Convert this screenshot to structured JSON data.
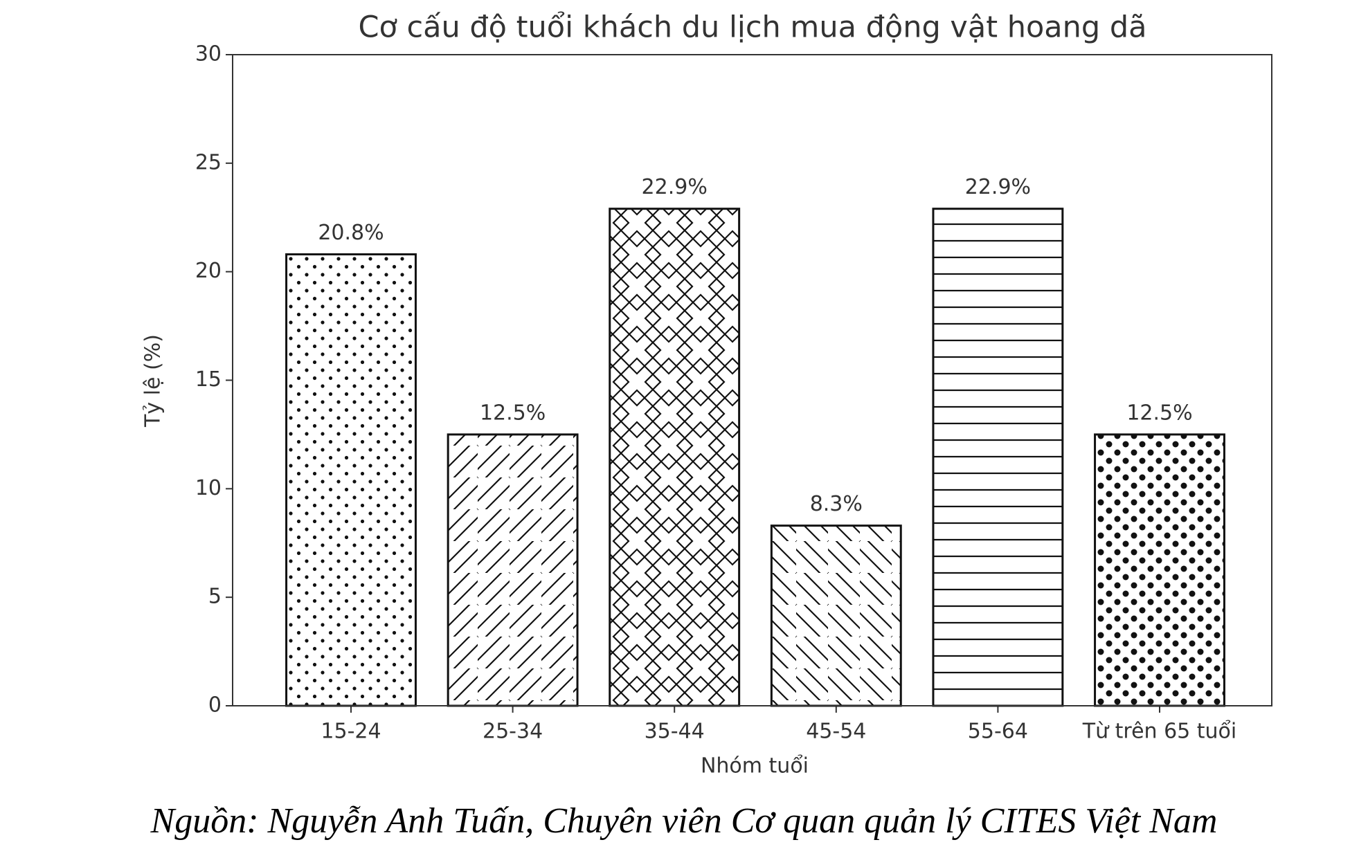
{
  "chart_data": {
    "type": "bar",
    "title": "Cơ cấu độ tuổi khách du lịch mua động vật hoang dã",
    "x_label": "Nhóm tuổi",
    "y_label": "Tỷ lệ (%)",
    "categories": [
      "15-24",
      "25-34",
      "35-44",
      "45-54",
      "55-64",
      "Từ trên 65 tuổi"
    ],
    "values": [
      20.8,
      12.5,
      22.9,
      8.3,
      22.9,
      12.5
    ],
    "value_labels": [
      "20.8%",
      "12.5%",
      "22.9%",
      "8.3%",
      "22.9%",
      "12.5%"
    ],
    "hatches": [
      ".",
      "/",
      "x",
      "\\",
      "-",
      "o"
    ],
    "color": "#ffffff",
    "edge_color": "#111111",
    "ylim": [
      0,
      30
    ],
    "yticks": [
      0,
      5,
      10,
      15,
      20,
      25,
      30
    ],
    "grid": false,
    "source": "Nguồn: Nguyễn Anh Tuấn, Chuyên viên Cơ quan quản lý CITES Việt Nam"
  }
}
